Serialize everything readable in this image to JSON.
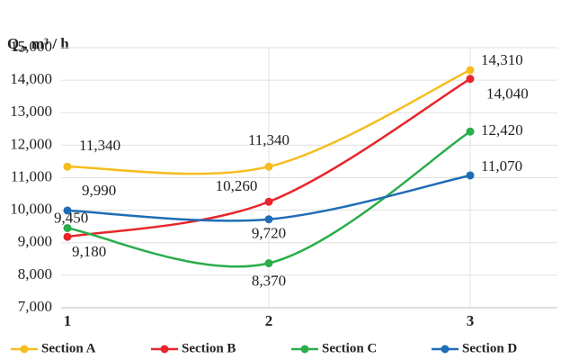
{
  "chart_data": {
    "type": "line",
    "y_label": "Q₂, m³ / h",
    "categories": [
      "1",
      "2",
      "3"
    ],
    "ylim": [
      7000,
      15000
    ],
    "yticks": [
      {
        "value": 7000,
        "label": "7,000"
      },
      {
        "value": 8000,
        "label": "8,000"
      },
      {
        "value": 9000,
        "label": "9,000"
      },
      {
        "value": 10000,
        "label": "10,000"
      },
      {
        "value": 11000,
        "label": "11,000"
      },
      {
        "value": 12000,
        "label": "12,000"
      },
      {
        "value": 13000,
        "label": "13,000"
      },
      {
        "value": 14000,
        "label": "14,000"
      },
      {
        "value": 15000,
        "label": "15,000"
      }
    ],
    "grid": true,
    "smooth": true,
    "legend": "bottom",
    "series": [
      {
        "name": "Section A",
        "color": "#f5bd1f",
        "values": [
          11340,
          11340,
          14310
        ],
        "value_labels": [
          "11,340",
          "11,340",
          "14,310"
        ]
      },
      {
        "name": "Section B",
        "color": "#e8262b",
        "values": [
          9180,
          10260,
          14040
        ],
        "value_labels": [
          "9,180",
          "10,260",
          "14,040"
        ]
      },
      {
        "name": "Section C",
        "color": "#2aad4a",
        "values": [
          9450,
          8370,
          12420
        ],
        "value_labels": [
          "9,450",
          "8,370",
          "12,420"
        ]
      },
      {
        "name": "Section D",
        "color": "#1f6db5",
        "values": [
          9990,
          9720,
          11070
        ],
        "value_labels": [
          "9,990",
          "9,720",
          "11,070"
        ]
      }
    ]
  }
}
